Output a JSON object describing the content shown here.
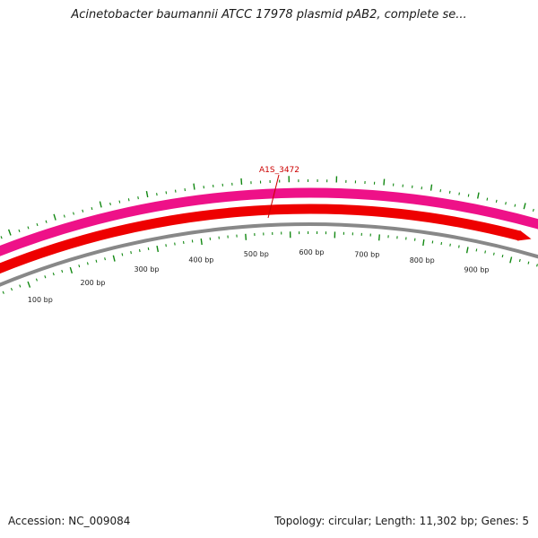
{
  "title": "Acinetobacter baumannii ATCC 17978 plasmid pAB2, complete se...",
  "accession": {
    "label": "Accession:",
    "value": "NC_009084"
  },
  "info": {
    "topology_label": "Topology:",
    "topology": "circular",
    "length_label": "Length:",
    "length": "11,302 bp",
    "genes_label": "Genes:",
    "genes": "5"
  },
  "gene_label": "A1S_3472",
  "tick_labels": [
    "100 bp",
    "200 bp",
    "300 bp",
    "400 bp",
    "500 bp",
    "600 bp",
    "700 bp",
    "800 bp",
    "900 bp"
  ],
  "colors": {
    "outer_feature": "#ee1188",
    "inner_feature": "#ee0000",
    "backbone": "#888888",
    "ticks": "#118811",
    "gene_label": "#cc0000"
  }
}
